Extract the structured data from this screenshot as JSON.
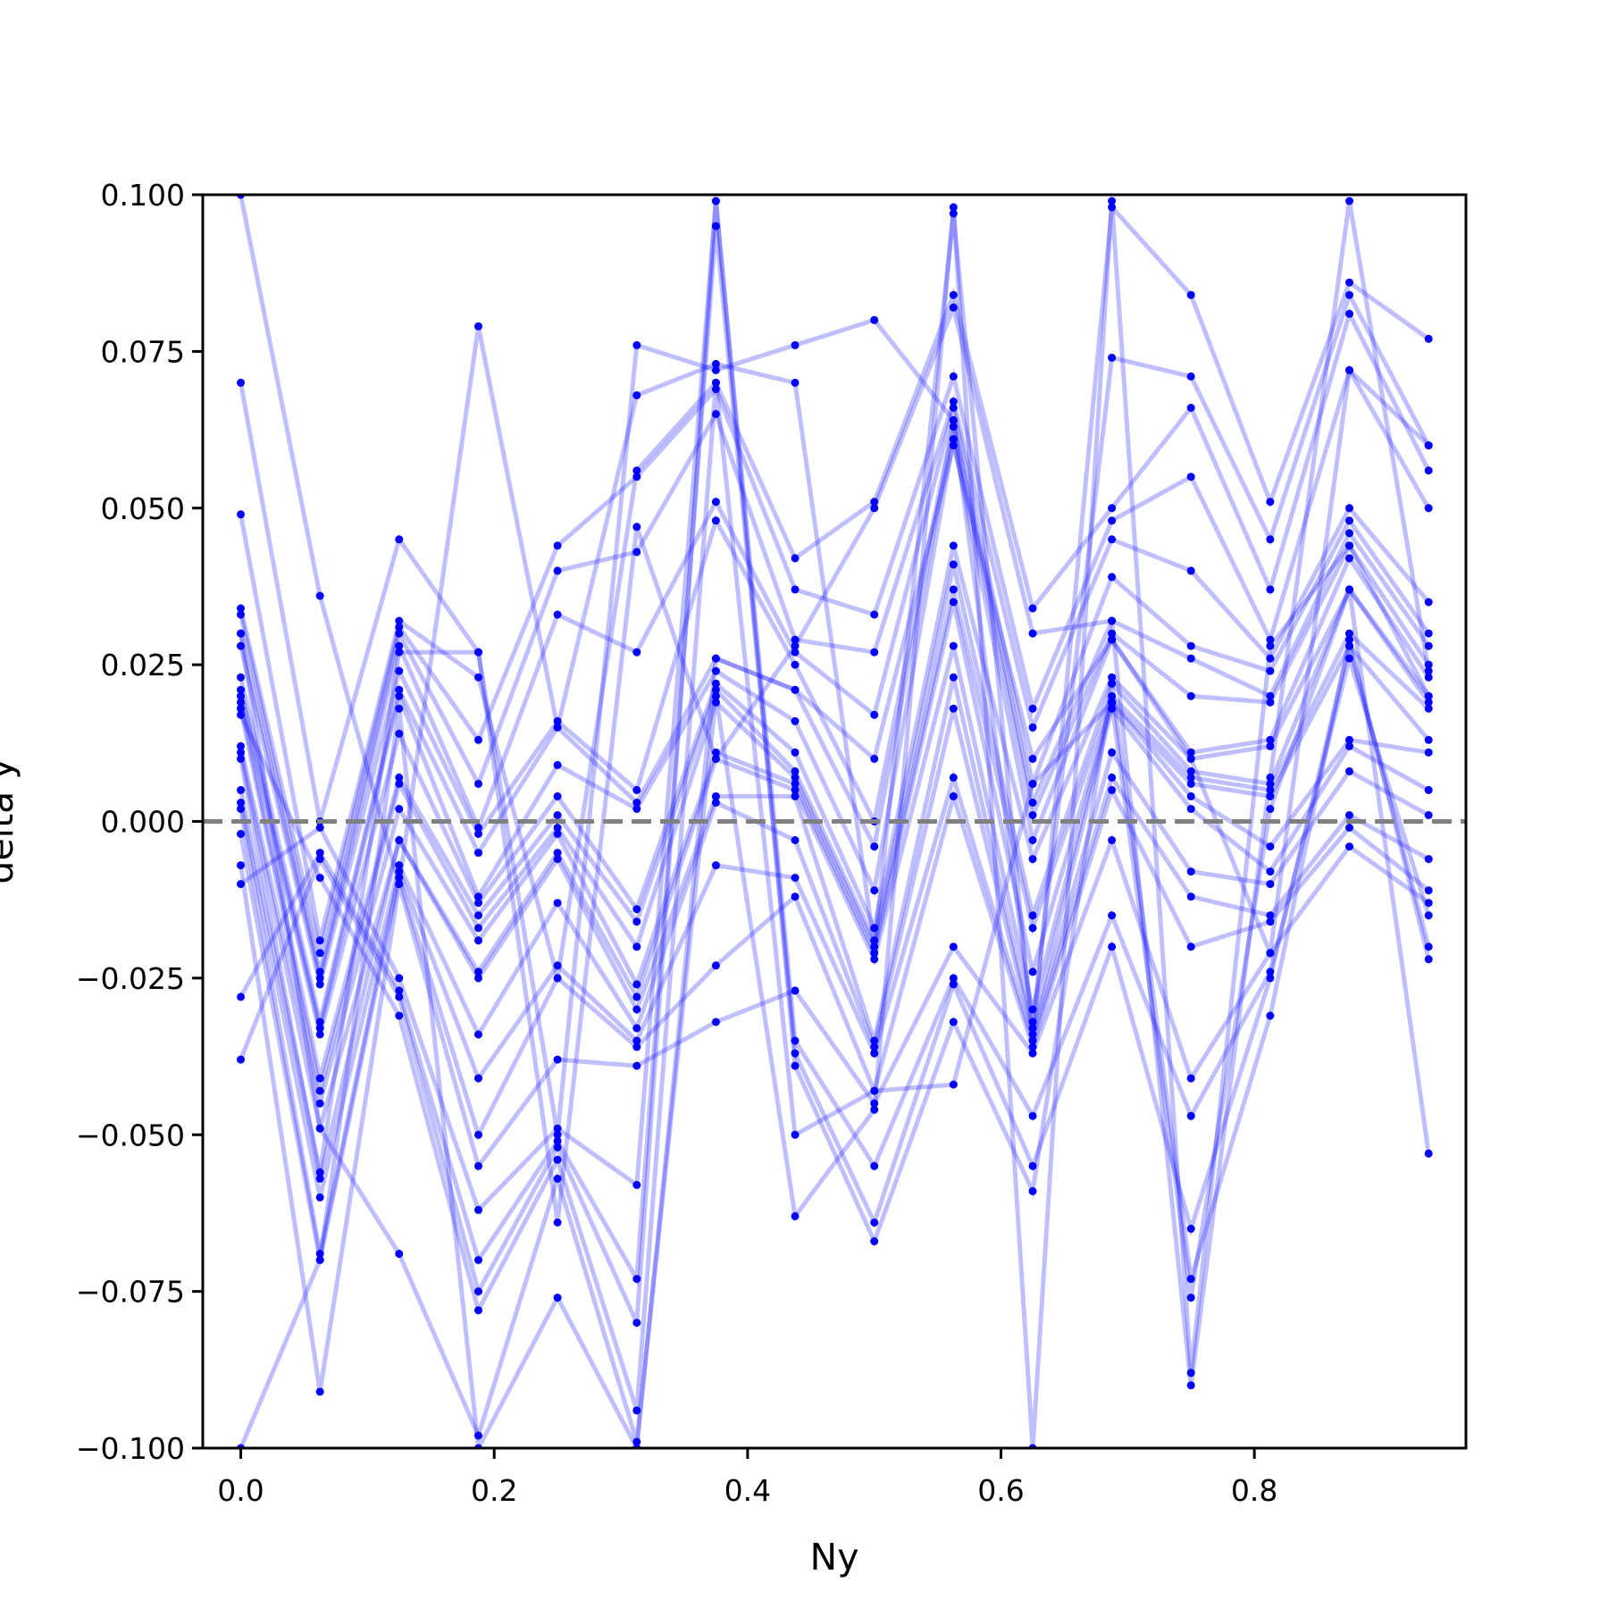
{
  "chart_data": {
    "type": "line",
    "title": "",
    "xlabel": "Ny",
    "ylabel": "delta y",
    "xlim": [
      -0.03,
      0.967
    ],
    "ylim": [
      -0.1,
      0.1
    ],
    "x_ticks": [
      0.0,
      0.2,
      0.4,
      0.6,
      0.8
    ],
    "x_tick_labels": [
      "0.0",
      "0.2",
      "0.4",
      "0.6",
      "0.8"
    ],
    "y_ticks": [
      0.1,
      0.075,
      0.05,
      0.025,
      0.0,
      -0.025,
      -0.05,
      -0.075,
      -0.1
    ],
    "y_tick_labels": [
      "0.100",
      "0.075",
      "0.050",
      "0.025",
      "0.000",
      "−0.025",
      "−0.050",
      "−0.075",
      "−0.100"
    ],
    "reference_line": {
      "y": 0.0,
      "style": "dashed",
      "color": "#808080"
    },
    "grid": false,
    "legend": "none",
    "series_color": "#0000ff",
    "x": [
      0.0,
      0.0625,
      0.125,
      0.1875,
      0.25,
      0.3125,
      0.375,
      0.4375,
      0.5,
      0.5625,
      0.625,
      0.6875,
      0.75,
      0.8125,
      0.875,
      0.9375
    ],
    "series": [
      {
        "values": [
          0.1,
          0.036,
          -0.01,
          0.079,
          0.015,
          0.068,
          0.073,
          0.07,
          -0.02,
          0.097,
          -0.035,
          0.098,
          0.084,
          0.051,
          0.086,
          0.077
        ]
      },
      {
        "values": [
          0.07,
          0.0,
          0.045,
          0.027,
          -0.05,
          0.076,
          0.072,
          0.076,
          0.08,
          0.064,
          -0.032,
          0.074,
          0.071,
          0.045,
          0.084,
          0.06
        ]
      },
      {
        "values": [
          0.049,
          -0.019,
          0.032,
          0.023,
          -0.025,
          0.056,
          0.07,
          0.042,
          0.051,
          0.084,
          0.034,
          0.05,
          0.066,
          0.037,
          0.081,
          0.056
        ]
      },
      {
        "values": [
          0.034,
          -0.021,
          0.031,
          0.013,
          0.044,
          0.055,
          0.069,
          0.037,
          0.033,
          0.071,
          0.018,
          0.048,
          0.055,
          0.029,
          0.072,
          0.05
        ]
      },
      {
        "values": [
          0.033,
          -0.024,
          0.03,
          0.006,
          0.04,
          0.043,
          0.065,
          0.029,
          0.027,
          0.067,
          0.015,
          0.045,
          0.04,
          0.026,
          0.05,
          0.035
        ]
      },
      {
        "values": [
          0.03,
          -0.025,
          0.028,
          -0.001,
          0.033,
          0.027,
          0.051,
          0.027,
          0.017,
          0.066,
          0.006,
          0.039,
          0.028,
          0.024,
          0.048,
          0.03
        ]
      },
      {
        "values": [
          0.028,
          -0.026,
          0.024,
          -0.002,
          0.016,
          0.005,
          0.048,
          0.025,
          0.0,
          0.064,
          0.003,
          0.032,
          0.026,
          0.02,
          0.046,
          0.028
        ]
      },
      {
        "values": [
          0.023,
          -0.032,
          0.021,
          -0.005,
          0.015,
          0.003,
          0.026,
          0.021,
          -0.004,
          0.063,
          0.001,
          0.03,
          0.02,
          0.019,
          0.044,
          0.025
        ]
      },
      {
        "values": [
          0.021,
          -0.033,
          0.02,
          -0.012,
          0.009,
          0.002,
          0.024,
          0.016,
          -0.011,
          0.061,
          -0.003,
          0.029,
          0.011,
          0.013,
          0.042,
          0.023
        ]
      },
      {
        "values": [
          0.02,
          -0.034,
          0.014,
          -0.013,
          0.004,
          -0.014,
          0.022,
          0.011,
          -0.017,
          0.044,
          -0.006,
          0.023,
          0.01,
          0.012,
          0.037,
          0.02
        ]
      },
      {
        "values": [
          0.019,
          -0.041,
          0.007,
          -0.015,
          0.001,
          -0.016,
          0.021,
          0.008,
          -0.019,
          0.041,
          -0.015,
          0.022,
          0.008,
          0.006,
          0.037,
          0.019
        ]
      },
      {
        "values": [
          0.018,
          -0.043,
          0.006,
          -0.017,
          -0.001,
          -0.02,
          0.019,
          0.007,
          -0.02,
          0.037,
          -0.017,
          0.02,
          0.007,
          0.005,
          0.03,
          0.018
        ]
      },
      {
        "values": [
          0.012,
          -0.045,
          0.002,
          -0.019,
          -0.002,
          -0.026,
          0.011,
          0.006,
          -0.021,
          0.035,
          -0.024,
          0.019,
          0.006,
          0.004,
          0.028,
          0.013
        ]
      },
      {
        "values": [
          0.011,
          -0.049,
          -0.003,
          -0.024,
          -0.005,
          -0.028,
          0.01,
          0.005,
          -0.022,
          0.028,
          -0.03,
          0.019,
          0.004,
          -0.004,
          0.013,
          0.011
        ]
      },
      {
        "values": [
          0.01,
          -0.057,
          -0.003,
          -0.025,
          -0.006,
          -0.03,
          0.004,
          0.004,
          -0.035,
          0.023,
          -0.033,
          0.018,
          0.002,
          -0.008,
          0.012,
          0.005
        ]
      },
      {
        "values": [
          0.003,
          -0.06,
          -0.007,
          -0.034,
          -0.013,
          -0.033,
          0.003,
          -0.003,
          -0.036,
          0.018,
          -0.034,
          0.011,
          -0.008,
          -0.01,
          0.008,
          0.001
        ]
      },
      {
        "values": [
          0.002,
          -0.069,
          -0.008,
          -0.041,
          -0.023,
          -0.035,
          -0.007,
          -0.009,
          -0.037,
          0.007,
          -0.035,
          0.007,
          -0.012,
          -0.015,
          0.001,
          -0.006
        ]
      },
      {
        "values": [
          -0.002,
          -0.07,
          -0.009,
          -0.05,
          -0.025,
          -0.036,
          -0.023,
          -0.012,
          -0.043,
          0.004,
          -0.036,
          0.005,
          -0.02,
          -0.016,
          -0.001,
          -0.011
        ]
      },
      {
        "values": [
          -0.007,
          -0.091,
          -0.01,
          -0.055,
          -0.038,
          -0.039,
          -0.032,
          -0.027,
          -0.045,
          -0.02,
          -0.037,
          -0.003,
          -0.041,
          -0.021,
          -0.004,
          -0.013
        ]
      },
      {
        "values": [
          -0.01,
          -0.001,
          -0.025,
          -0.062,
          -0.049,
          -0.058,
          0.099,
          -0.035,
          -0.055,
          -0.025,
          -0.047,
          -0.015,
          -0.047,
          -0.024,
          0.026,
          -0.015
        ]
      },
      {
        "values": [
          -0.028,
          -0.005,
          -0.027,
          -0.07,
          -0.051,
          -0.073,
          0.095,
          -0.037,
          -0.064,
          -0.026,
          -0.055,
          -0.02,
          -0.065,
          -0.025,
          0.028,
          -0.02
        ]
      },
      {
        "values": [
          -0.038,
          -0.006,
          -0.028,
          -0.075,
          -0.052,
          -0.08,
          0.099,
          -0.039,
          -0.067,
          -0.032,
          -0.059,
          0.022,
          -0.073,
          -0.031,
          0.029,
          -0.022
        ]
      },
      {
        "values": [
          0.017,
          -0.009,
          -0.031,
          -0.078,
          -0.054,
          -0.094,
          0.07,
          -0.05,
          -0.043,
          -0.042,
          0.006,
          0.019,
          -0.076,
          0.002,
          0.037,
          -0.053
        ]
      },
      {
        "values": [
          0.03,
          -0.049,
          -0.069,
          -0.098,
          -0.057,
          -0.099,
          0.02,
          -0.063,
          -0.046,
          0.098,
          -0.1,
          0.099,
          -0.088,
          0.028,
          0.044,
          0.02
        ]
      },
      {
        "values": [
          0.005,
          -0.056,
          0.027,
          0.027,
          -0.064,
          0.047,
          0.01,
          0.028,
          0.05,
          0.082,
          0.03,
          0.032,
          -0.09,
          0.007,
          0.099,
          0.024
        ]
      },
      {
        "values": [
          -0.1,
          -0.07,
          0.018,
          -0.1,
          -0.076,
          -0.1,
          0.026,
          0.021,
          0.01,
          0.06,
          0.01,
          0.029,
          0.01,
          -0.021,
          0.072,
          0.06
        ]
      }
    ]
  }
}
